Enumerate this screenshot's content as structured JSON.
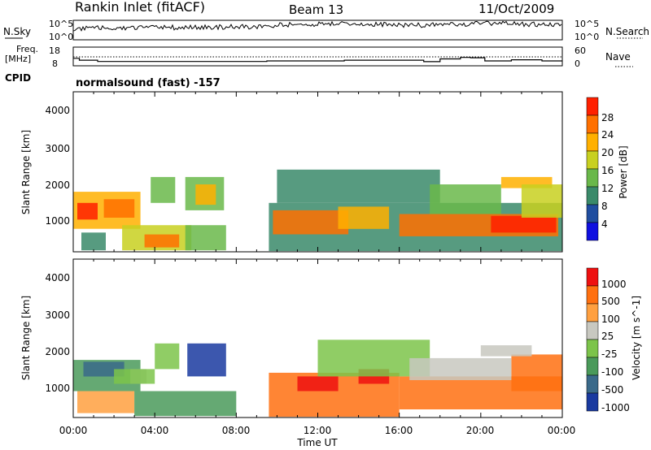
{
  "header": {
    "station": "Rankin Inlet (fitACF)",
    "beam": "Beam 13",
    "date": "11/Oct/2009"
  },
  "strip_noise": {
    "left_label": "N.Sky",
    "left_ticks": [
      "10^5",
      "10^0"
    ],
    "right_label": "N.Search",
    "right_ticks": [
      "10^5",
      "10^0"
    ]
  },
  "strip_freq": {
    "left_label": "Freq.",
    "left_unit": "[MHz]",
    "left_ticks": [
      "18",
      "8"
    ],
    "right_label": "Nave",
    "right_ticks": [
      "60",
      "0"
    ],
    "cpid_label": "CPID",
    "cpid_text": "normalsound (fast) -157"
  },
  "panel_power": {
    "ylabel": "Slant Range [km]",
    "yticks": [
      "1000",
      "2000",
      "3000",
      "4000"
    ],
    "colorbar_label": "Power [dB]",
    "colorbar_ticks": [
      "4",
      "8",
      "12",
      "16",
      "20",
      "24",
      "28"
    ]
  },
  "panel_velocity": {
    "ylabel": "Slant Range [km]",
    "yticks": [
      "1000",
      "2000",
      "3000",
      "4000"
    ],
    "colorbar_label": "Velocity [m s^-1]",
    "colorbar_ticks": [
      "1000",
      "500",
      "100",
      "25",
      "-25",
      "-100",
      "-500",
      "-1000"
    ]
  },
  "xaxis": {
    "label": "Time UT",
    "ticks": [
      "00:00",
      "04:00",
      "08:00",
      "12:00",
      "16:00",
      "20:00",
      "00:00"
    ]
  },
  "chart_data": {
    "type": "heatmap",
    "x_range_hours": [
      0,
      24
    ],
    "y_range_km": [
      180,
      4500
    ],
    "power_colors": [
      "#1010e0",
      "#204ea0",
      "#3a8a6a",
      "#6ab84a",
      "#c8d020",
      "#ffb000",
      "#ff7000",
      "#ff2000"
    ],
    "velocity_colors": [
      "#1a3aa0",
      "#3a6a8a",
      "#4a9a5a",
      "#7cc44a",
      "#c8c8c0",
      "#ffa040",
      "#ff7010",
      "#ee1010"
    ],
    "power_regions": [
      {
        "t0": 0.0,
        "t1": 3.3,
        "r0": 800,
        "r1": 1800,
        "level": 5
      },
      {
        "t0": 0.2,
        "t1": 1.2,
        "r0": 1050,
        "r1": 1500,
        "level": 7
      },
      {
        "t0": 1.5,
        "t1": 3.0,
        "r0": 1100,
        "r1": 1600,
        "level": 6
      },
      {
        "t0": 0.4,
        "t1": 1.6,
        "r0": 220,
        "r1": 700,
        "level": 2
      },
      {
        "t0": 2.4,
        "t1": 5.8,
        "r0": 220,
        "r1": 900,
        "level": 4
      },
      {
        "t0": 3.5,
        "t1": 5.2,
        "r0": 300,
        "r1": 650,
        "level": 6
      },
      {
        "t0": 5.5,
        "t1": 7.5,
        "r0": 220,
        "r1": 900,
        "level": 3
      },
      {
        "t0": 5.5,
        "t1": 7.4,
        "r0": 1300,
        "r1": 2200,
        "level": 3
      },
      {
        "t0": 6.0,
        "t1": 7.0,
        "r0": 1450,
        "r1": 2000,
        "level": 5
      },
      {
        "t0": 3.8,
        "t1": 5.0,
        "r0": 1500,
        "r1": 2200,
        "level": 3
      },
      {
        "t0": 9.6,
        "t1": 24.0,
        "r0": 200,
        "r1": 1500,
        "level": 2
      },
      {
        "t0": 9.8,
        "t1": 13.5,
        "r0": 650,
        "r1": 1300,
        "level": 6
      },
      {
        "t0": 13.0,
        "t1": 15.5,
        "r0": 800,
        "r1": 1400,
        "level": 5
      },
      {
        "t0": 16.0,
        "t1": 23.8,
        "r0": 600,
        "r1": 1200,
        "level": 6
      },
      {
        "t0": 20.5,
        "t1": 23.7,
        "r0": 700,
        "r1": 1150,
        "level": 7
      },
      {
        "t0": 10.0,
        "t1": 18.0,
        "r0": 1500,
        "r1": 2400,
        "level": 2
      },
      {
        "t0": 17.5,
        "t1": 21.0,
        "r0": 1200,
        "r1": 2000,
        "level": 3
      },
      {
        "t0": 21.0,
        "t1": 23.5,
        "r0": 1900,
        "r1": 2200,
        "level": 5
      },
      {
        "t0": 22.0,
        "t1": 24.0,
        "r0": 1100,
        "r1": 2000,
        "level": 4
      }
    ],
    "velocity_regions": [
      {
        "t0": 0.0,
        "t1": 3.3,
        "r0": 900,
        "r1": 1750,
        "level": 2
      },
      {
        "t0": 0.5,
        "t1": 2.5,
        "r0": 1300,
        "r1": 1700,
        "level": 1
      },
      {
        "t0": 2.8,
        "t1": 3.6,
        "r0": 1100,
        "r1": 1500,
        "level": 4
      },
      {
        "t0": 0.2,
        "t1": 3.0,
        "r0": 300,
        "r1": 900,
        "level": 5
      },
      {
        "t0": 3.0,
        "t1": 8.0,
        "r0": 220,
        "r1": 900,
        "level": 2
      },
      {
        "t0": 5.6,
        "t1": 7.5,
        "r0": 1300,
        "r1": 2200,
        "level": 0
      },
      {
        "t0": 4.0,
        "t1": 5.2,
        "r0": 1500,
        "r1": 2200,
        "level": 3
      },
      {
        "t0": 9.6,
        "t1": 16.0,
        "r0": 200,
        "r1": 1400,
        "level": 6
      },
      {
        "t0": 11.0,
        "t1": 13.0,
        "r0": 900,
        "r1": 1300,
        "level": 7
      },
      {
        "t0": 14.0,
        "t1": 15.5,
        "r0": 1100,
        "r1": 1500,
        "level": 7
      },
      {
        "t0": 16.0,
        "t1": 24.0,
        "r0": 400,
        "r1": 1300,
        "level": 6
      },
      {
        "t0": 21.5,
        "t1": 24.0,
        "r0": 900,
        "r1": 1900,
        "level": 6
      },
      {
        "t0": 12.0,
        "t1": 17.5,
        "r0": 1300,
        "r1": 2300,
        "level": 3
      },
      {
        "t0": 16.5,
        "t1": 21.5,
        "r0": 1200,
        "r1": 1800,
        "level": 4
      },
      {
        "t0": 20.0,
        "t1": 22.5,
        "r0": 1850,
        "r1": 2150,
        "level": 4
      },
      {
        "t0": 2.0,
        "t1": 4.0,
        "r0": 1100,
        "r1": 1500,
        "level": 3
      }
    ],
    "freq_steps": [
      {
        "t0": 0.0,
        "t1": 0.3,
        "value": 12
      },
      {
        "t0": 0.3,
        "t1": 1.2,
        "value": 11
      },
      {
        "t0": 1.2,
        "t1": 9.5,
        "value": 10.3
      },
      {
        "t0": 9.5,
        "t1": 13.3,
        "value": 10.6
      },
      {
        "t0": 13.3,
        "t1": 17.2,
        "value": 11
      },
      {
        "t0": 17.2,
        "t1": 18.0,
        "value": 10.2
      },
      {
        "t0": 18.0,
        "t1": 19.0,
        "value": 11.7
      },
      {
        "t0": 19.0,
        "t1": 19.5,
        "value": 12.5
      },
      {
        "t0": 19.5,
        "t1": 20.2,
        "value": 12.3
      },
      {
        "t0": 20.2,
        "t1": 21.5,
        "value": 10.6
      },
      {
        "t0": 21.5,
        "t1": 23.0,
        "value": 11.2
      },
      {
        "t0": 23.0,
        "t1": 24.0,
        "value": 10.6
      }
    ]
  }
}
